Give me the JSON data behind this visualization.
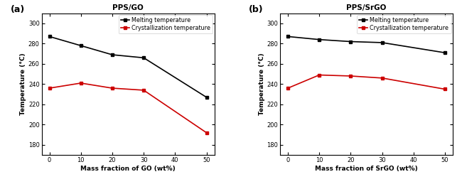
{
  "panel_a": {
    "title": "PPS/GO",
    "xlabel": "Mass fraction of GO (wt%)",
    "ylabel": "Temperature (°C)",
    "x": [
      0,
      10,
      20,
      30,
      50
    ],
    "melting": [
      287,
      278,
      269,
      266,
      227
    ],
    "crystallization": [
      236,
      241,
      236,
      234,
      192
    ],
    "melting_color": "#000000",
    "cryst_color": "#cc0000",
    "label_melting": "Melting temperature",
    "label_cryst": "Crystallization temperature",
    "ylim": [
      170,
      310
    ],
    "yticks": [
      180,
      200,
      220,
      240,
      260,
      280,
      300
    ],
    "xticks": [
      0,
      10,
      20,
      30,
      40,
      50
    ]
  },
  "panel_b": {
    "title": "PPS/SrGO",
    "xlabel": "Mass fraction of SrGO (wt%)",
    "ylabel": "Temperature (°C)",
    "x": [
      0,
      10,
      20,
      30,
      50
    ],
    "melting": [
      287,
      284,
      282,
      281,
      271
    ],
    "crystallization": [
      236,
      249,
      248,
      246,
      235
    ],
    "melting_color": "#000000",
    "cryst_color": "#cc0000",
    "label_melting": "Melting temperature",
    "label_cryst": "Crystallization temperature",
    "ylim": [
      170,
      310
    ],
    "yticks": [
      180,
      200,
      220,
      240,
      260,
      280,
      300
    ],
    "xticks": [
      0,
      10,
      20,
      30,
      40,
      50
    ]
  },
  "label_a": "(a)",
  "label_b": "(b)",
  "bg_color": "#ffffff",
  "marker": "s",
  "linewidth": 1.2,
  "markersize": 3.5,
  "font_size_title": 7.5,
  "font_size_label": 6.5,
  "font_size_tick": 6.0,
  "font_size_legend": 5.8,
  "font_size_panel": 9
}
